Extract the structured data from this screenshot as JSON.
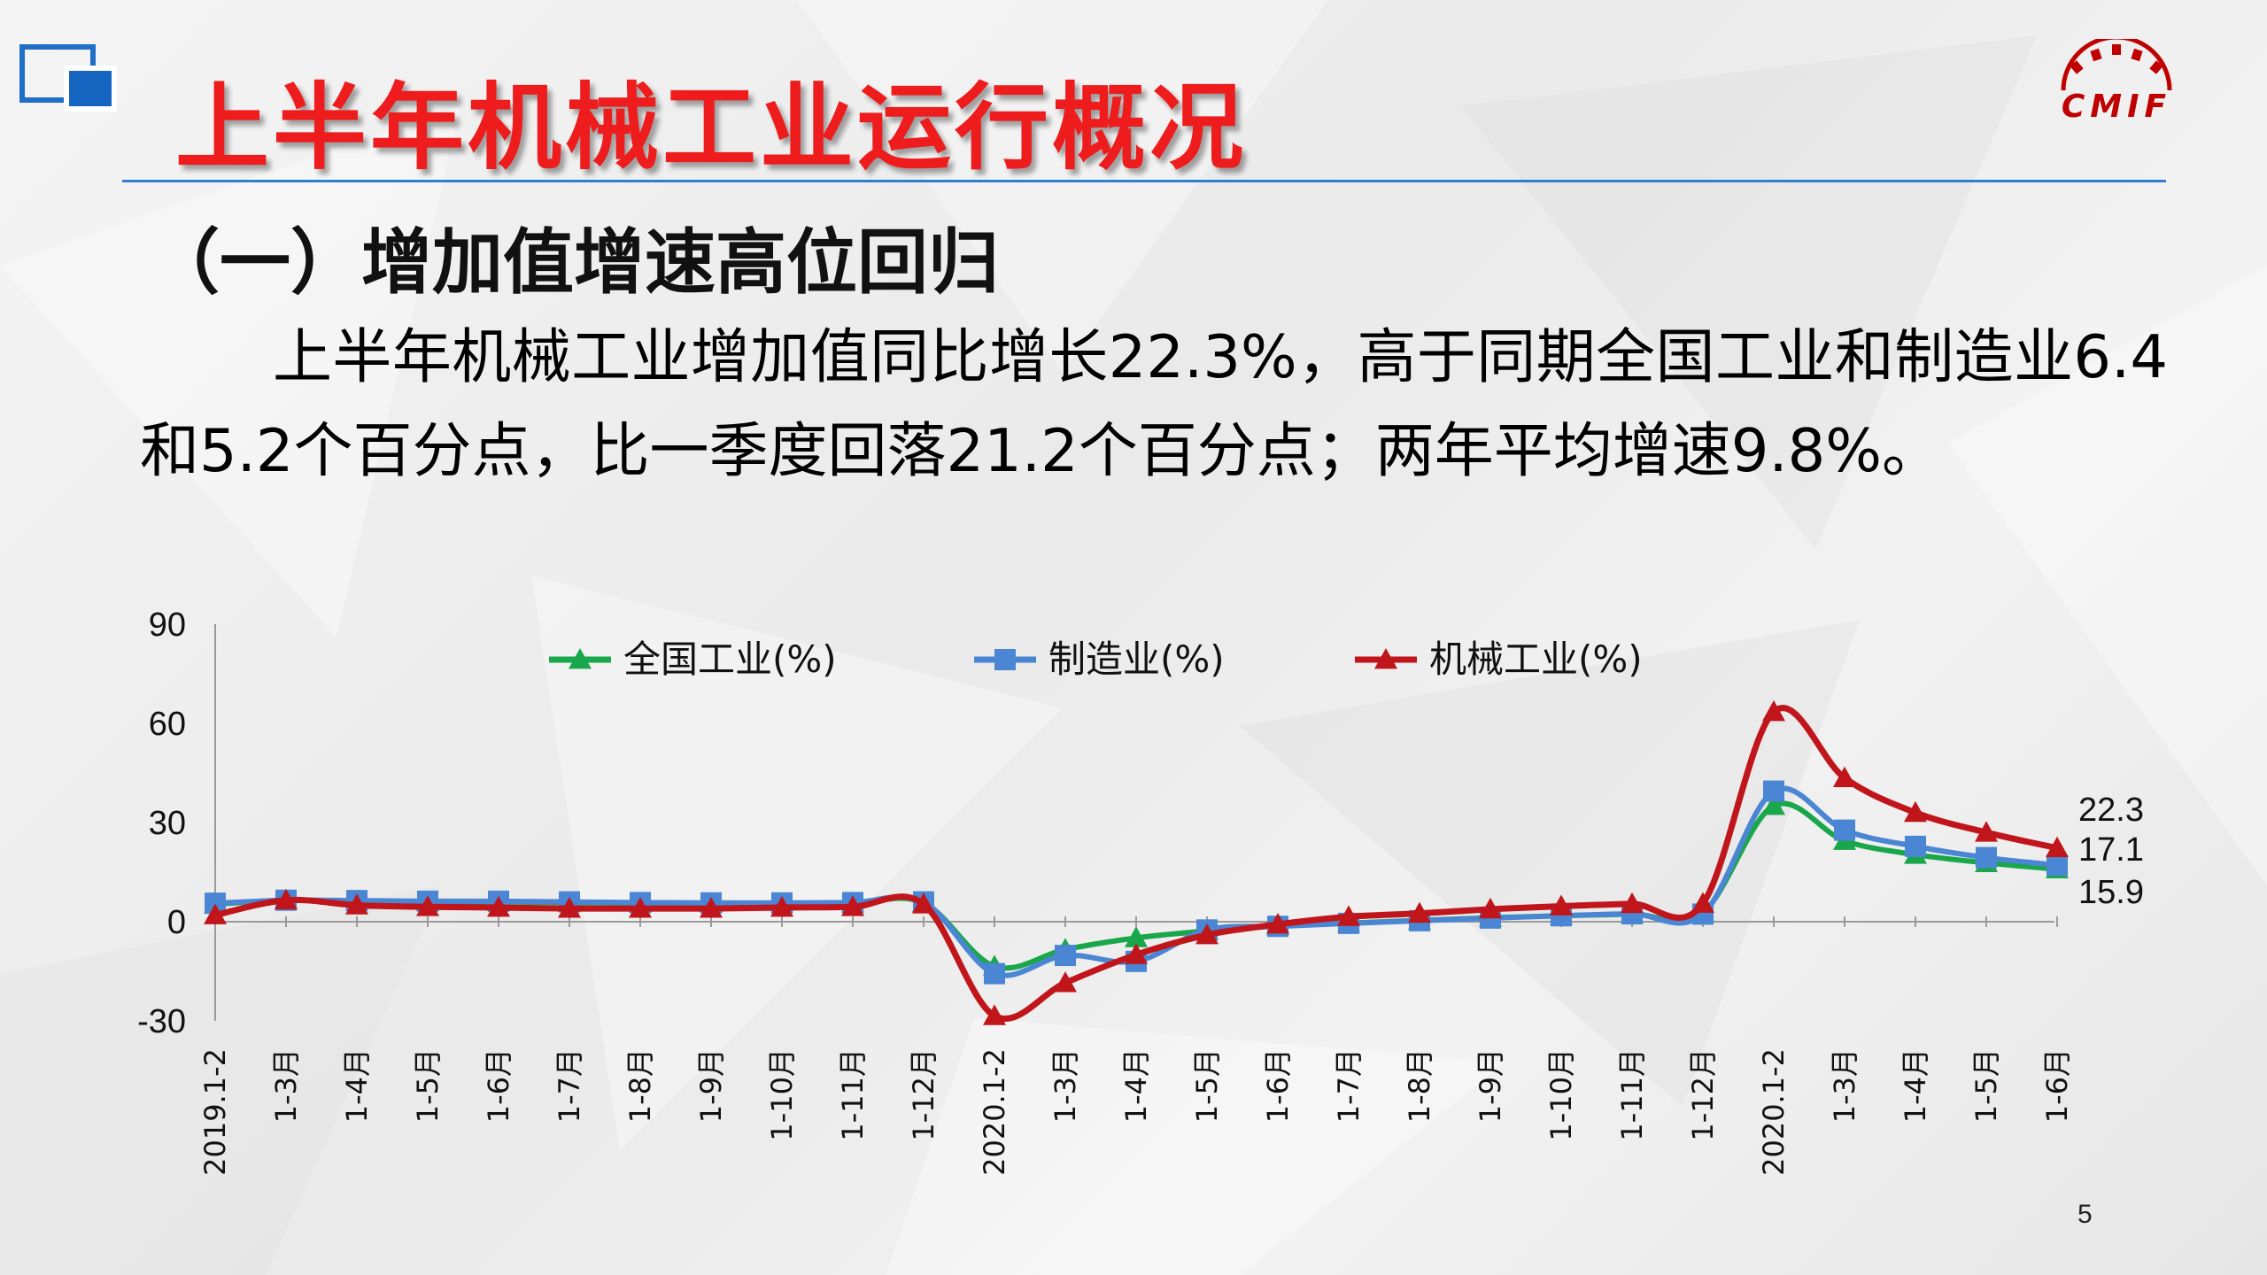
{
  "slide": {
    "title": "上半年机械工业运行概况",
    "subtitle": "（一）增加值增速高位回归",
    "paragraph": "上半年机械工业增加值同比增长22.3%，高于同期全国工业和制造业6.4和5.2个百分点，比一季度回落21.2个百分点；两年平均增速9.8%。",
    "logo_text": "CMIF",
    "page_number": "5"
  },
  "colors": {
    "title": "#ee1c1c",
    "rule": "#2f7fd0",
    "national": "#1aa64a",
    "manufacturing": "#4a86d4",
    "machinery": "#c0151b",
    "logo": "#c00000"
  },
  "chart_data": {
    "type": "line",
    "categories": [
      "2019.1-2",
      "1-3月",
      "1-4月",
      "1-5月",
      "1-6月",
      "1-7月",
      "1-8月",
      "1-9月",
      "1-10月",
      "1-11月",
      "1-12月",
      "2020.1-2",
      "1-3月",
      "1-4月",
      "1-5月",
      "1-6月",
      "1-7月",
      "1-8月",
      "1-9月",
      "1-10月",
      "1-11月",
      "1-12月",
      "2020.1-2",
      "1-3月",
      "1-4月",
      "1-5月",
      "1-6月"
    ],
    "ylim": [
      -30,
      90
    ],
    "yticks": [
      -30,
      0,
      30,
      60,
      90
    ],
    "legend_position": "top",
    "series": [
      {
        "name": "全国工业(%)",
        "marker": "triangle",
        "values": [
          5.3,
          6.5,
          6.2,
          6.0,
          6.0,
          5.8,
          5.6,
          5.6,
          5.6,
          5.6,
          5.7,
          -13.5,
          -8.4,
          -4.9,
          -2.8,
          -1.3,
          -0.4,
          0.4,
          1.2,
          1.8,
          2.3,
          2.8,
          35.1,
          24.5,
          20.3,
          17.8,
          15.9
        ],
        "end_label": "15.9"
      },
      {
        "name": "制造业(%)",
        "marker": "square",
        "values": [
          5.6,
          6.5,
          6.4,
          6.2,
          6.2,
          6.0,
          5.8,
          5.7,
          5.7,
          5.8,
          6.0,
          -15.7,
          -10.2,
          -12.0,
          -2.5,
          -1.4,
          -0.5,
          0.3,
          1.1,
          1.8,
          2.4,
          2.3,
          39.5,
          27.7,
          22.8,
          19.4,
          17.1
        ],
        "end_label": "17.1"
      },
      {
        "name": "机械工业(%)",
        "marker": "triangle",
        "values": [
          2.0,
          6.5,
          5.0,
          4.5,
          4.3,
          4.0,
          4.0,
          4.0,
          4.3,
          4.5,
          5.3,
          -28.5,
          -18.5,
          -10.0,
          -4.0,
          -0.8,
          1.5,
          2.5,
          3.8,
          4.7,
          5.4,
          5.5,
          63.5,
          43.5,
          33.0,
          27.0,
          22.3
        ],
        "end_label": "22.3"
      }
    ]
  }
}
